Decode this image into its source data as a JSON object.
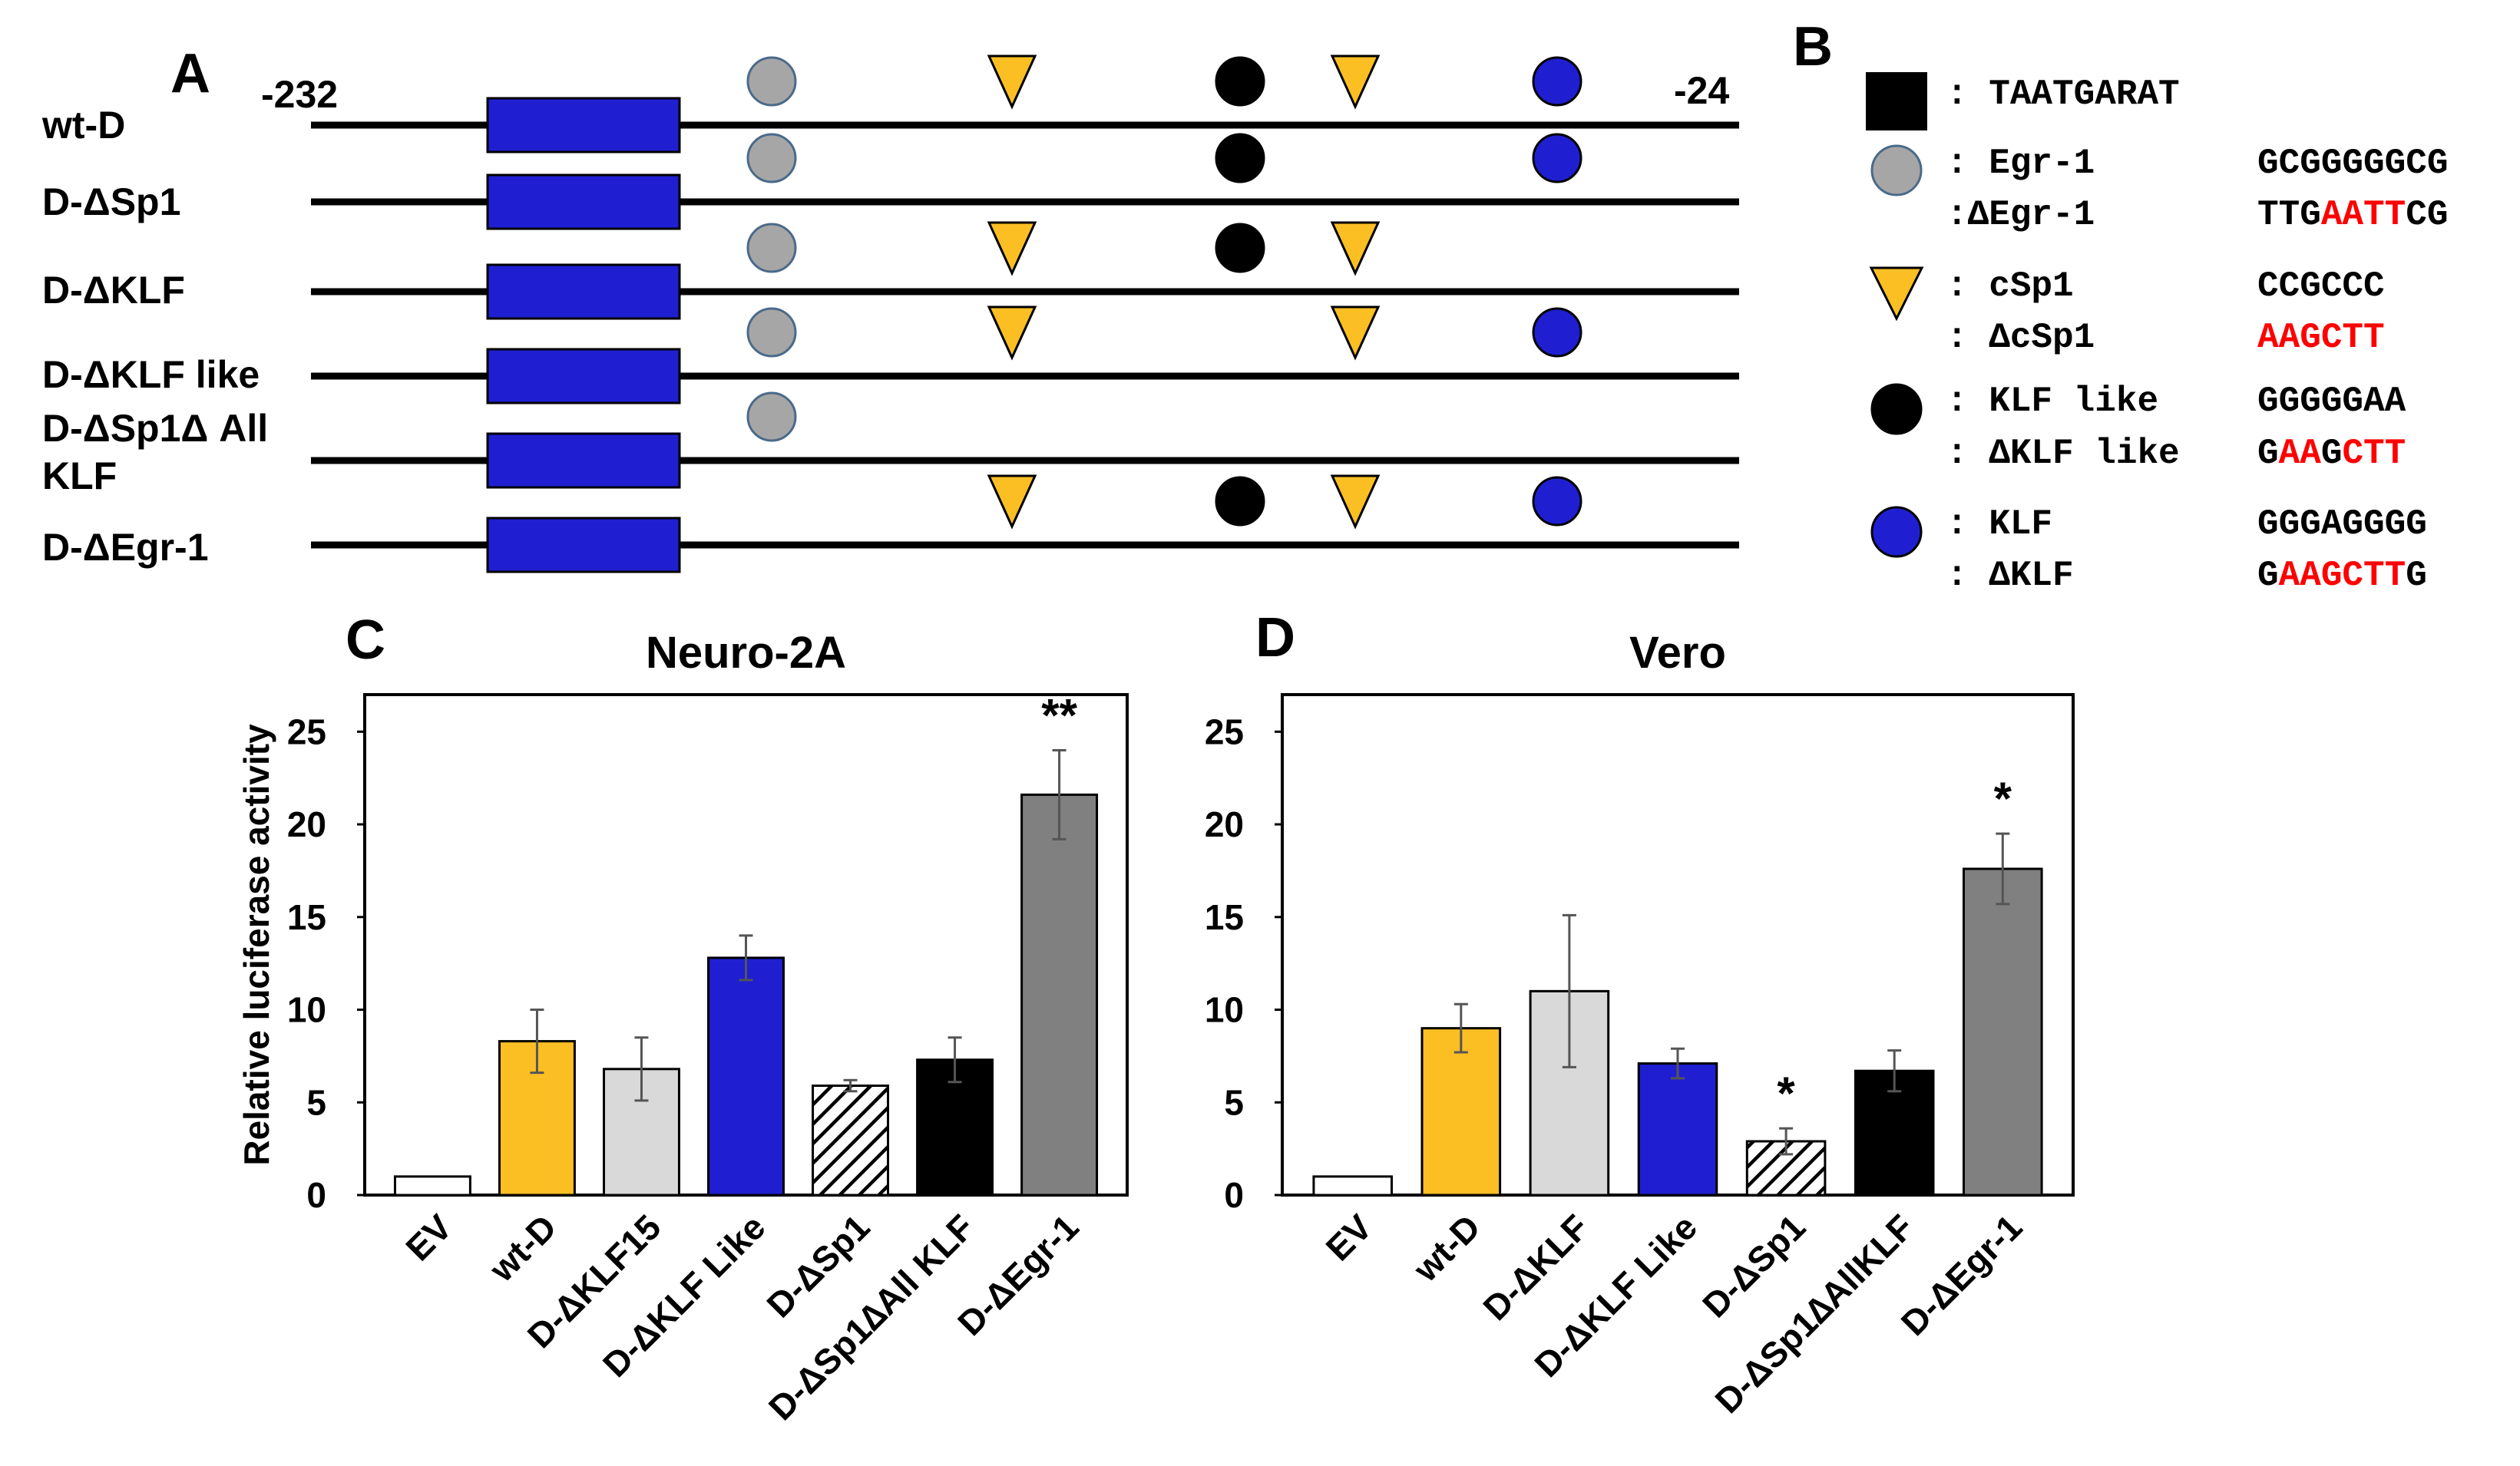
{
  "panel_a": {
    "label": "A",
    "left_pos": "-232",
    "right_pos": "-24",
    "constructs": [
      {
        "name": "wt-D",
        "sites": [
          "egr1",
          "csp1",
          "klf_like",
          "csp1b",
          "klf"
        ]
      },
      {
        "name": "D-ΔSp1",
        "sites": [
          "egr1",
          "klf_like",
          "klf"
        ]
      },
      {
        "name": "D-ΔKLF",
        "sites": [
          "egr1",
          "csp1",
          "klf_like",
          "csp1b"
        ]
      },
      {
        "name": "D-ΔKLF like",
        "sites": [
          "egr1",
          "csp1",
          "csp1b",
          "klf"
        ]
      },
      {
        "name": "D-ΔSp1Δ All\nKLF",
        "sites": [
          "egr1"
        ]
      },
      {
        "name": "D-ΔEgr-1",
        "sites": [
          "csp1",
          "klf_like",
          "csp1b",
          "klf"
        ]
      }
    ]
  },
  "panel_b": {
    "label": "B",
    "legend": [
      {
        "shape": "square",
        "color": "#000000",
        "lines": [
          {
            "name": ": TAATGARAT",
            "seq": []
          }
        ]
      },
      {
        "shape": "circle",
        "color": "#a6a6a6",
        "lines": [
          {
            "name": ": Egr-1",
            "seq": [
              {
                "t": "GCGGGGGCG",
                "red": false
              }
            ]
          },
          {
            "name": ":ΔEgr-1",
            "seq": [
              {
                "t": "TTG",
                "red": false
              },
              {
                "t": "AATT",
                "red": true
              },
              {
                "t": "CG",
                "red": false
              }
            ]
          }
        ]
      },
      {
        "shape": "triangle",
        "color": "#fbbf24",
        "lines": [
          {
            "name": ": cSp1",
            "seq": [
              {
                "t": "CCGCCC",
                "red": false
              }
            ]
          },
          {
            "name": ": ΔcSp1",
            "seq": [
              {
                "t": "AAGCTT",
                "red": true
              }
            ]
          }
        ]
      },
      {
        "shape": "circle",
        "color": "#000000",
        "lines": [
          {
            "name": ": KLF like",
            "seq": [
              {
                "t": "GGGGGAA",
                "red": false
              }
            ]
          },
          {
            "name": ": ΔKLF like",
            "seq": [
              {
                "t": "G",
                "red": false
              },
              {
                "t": "AA",
                "red": true
              },
              {
                "t": "G",
                "red": false
              },
              {
                "t": "CTT",
                "red": true
              }
            ]
          }
        ]
      },
      {
        "shape": "circle",
        "color": "#1f1fd1",
        "lines": [
          {
            "name": ": KLF",
            "seq": [
              {
                "t": "GGGAGGGG",
                "red": false
              }
            ]
          },
          {
            "name": ": ΔKLF",
            "seq": [
              {
                "t": "G",
                "red": false
              },
              {
                "t": "AAGCTT",
                "red": true
              },
              {
                "t": "G",
                "red": false
              }
            ]
          }
        ]
      }
    ]
  },
  "colors": {
    "yellow": "#fbbf24",
    "gray_circle": "#a6a6a6",
    "blue": "#1f1fd1",
    "black": "#000000",
    "red": "#ff0000"
  },
  "chart_data": [
    {
      "panel": "C",
      "type": "bar",
      "title": "Neuro-2A",
      "ylabel": "Relative luciferase activity",
      "ylim": [
        0,
        27
      ],
      "yticks": [
        0,
        5,
        10,
        15,
        20,
        25
      ],
      "categories": [
        "EV",
        "wt-D",
        "D-ΔKLF15",
        "D-ΔKLF Like",
        "D-ΔSp1",
        "D-ΔSp1∆All KLF",
        "D-ΔEgr-1"
      ],
      "values": [
        1.0,
        8.3,
        6.8,
        12.8,
        5.9,
        7.3,
        21.6
      ],
      "errors": [
        0,
        1.7,
        1.7,
        1.2,
        0.3,
        1.2,
        2.4
      ],
      "fills": [
        "white",
        "yellow",
        "lightgray",
        "blue",
        "hatch",
        "black",
        "gray"
      ],
      "annotations": [
        "",
        "",
        "",
        "",
        "",
        "",
        "**"
      ]
    },
    {
      "panel": "D",
      "type": "bar",
      "title": "Vero",
      "ylabel": "",
      "ylim": [
        0,
        27
      ],
      "yticks": [
        0,
        5,
        10,
        15,
        20,
        25
      ],
      "categories": [
        "EV",
        "wt-D",
        "D-ΔKLF",
        "D-ΔKLF Like",
        "D-ΔSp1",
        "D-ΔSp1∆AllKLF",
        "D-ΔEgr-1"
      ],
      "values": [
        1.0,
        9.0,
        11.0,
        7.1,
        2.9,
        6.7,
        17.6
      ],
      "errors": [
        0,
        1.3,
        4.1,
        0.8,
        0.7,
        1.1,
        1.9
      ],
      "fills": [
        "white",
        "yellow",
        "lightgray",
        "blue",
        "hatch",
        "black",
        "gray"
      ],
      "annotations": [
        "",
        "",
        "",
        "",
        "*",
        "",
        "*"
      ]
    }
  ]
}
